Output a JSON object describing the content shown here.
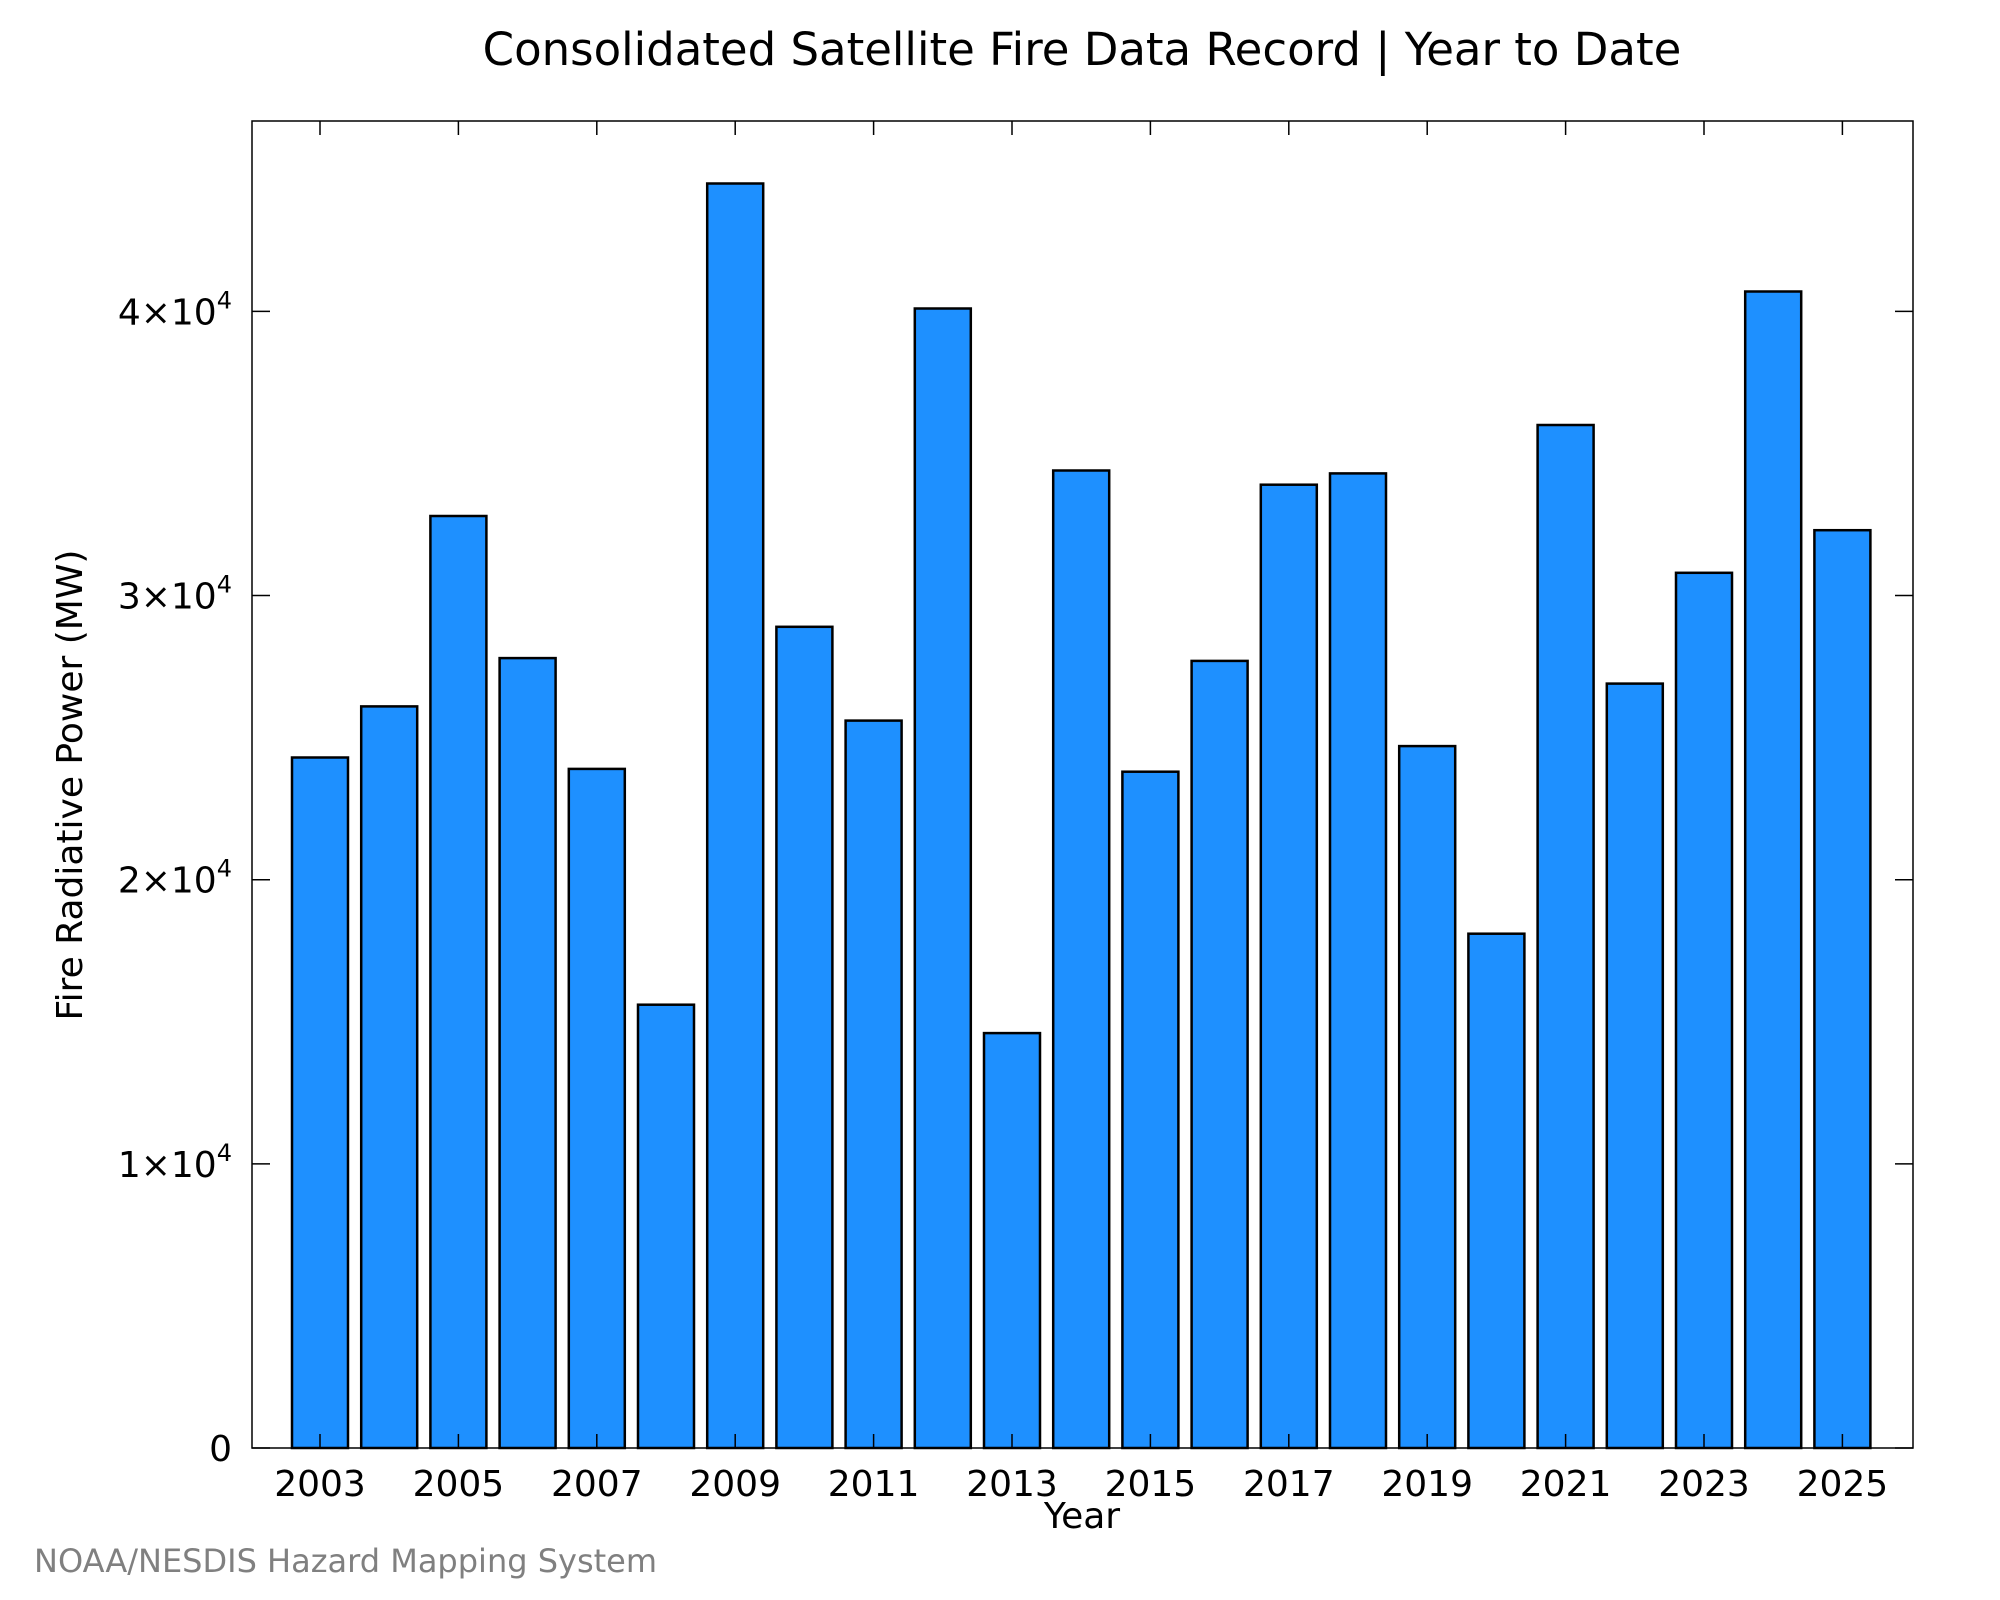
{
  "chart_data": {
    "type": "bar",
    "title": "Consolidated Satellite Fire Data Record | Year to Date",
    "xlabel": "Year",
    "ylabel": "Fire Radiative Power (MW)",
    "categories": [
      "2003",
      "2004",
      "2005",
      "2006",
      "2007",
      "2008",
      "2009",
      "2010",
      "2011",
      "2012",
      "2013",
      "2014",
      "2015",
      "2016",
      "2017",
      "2018",
      "2019",
      "2020",
      "2021",
      "2022",
      "2023",
      "2024",
      "2025"
    ],
    "values": [
      24300,
      26100,
      32800,
      27800,
      23900,
      15600,
      44500,
      28900,
      25600,
      40100,
      14600,
      34400,
      23800,
      27700,
      33900,
      34300,
      24700,
      18100,
      36000,
      26900,
      30800,
      40700,
      32300
    ],
    "xticks": [
      "2003",
      "2005",
      "2007",
      "2009",
      "2011",
      "2013",
      "2015",
      "2017",
      "2019",
      "2021",
      "2023",
      "2025"
    ],
    "yticks": [
      {
        "value": 0,
        "mantissa": "0",
        "exp": ""
      },
      {
        "value": 10000,
        "mantissa": "1×10",
        "exp": "4"
      },
      {
        "value": 20000,
        "mantissa": "2×10",
        "exp": "4"
      },
      {
        "value": 30000,
        "mantissa": "3×10",
        "exp": "4"
      },
      {
        "value": 40000,
        "mantissa": "4×10",
        "exp": "4"
      }
    ],
    "ylim": [
      0,
      46700
    ],
    "grid": false,
    "bar_color": "#1e90ff",
    "edge_color": "#000000"
  },
  "credit": {
    "text": "NOAA/NESDIS Hazard Mapping System",
    "color": "#808080"
  }
}
